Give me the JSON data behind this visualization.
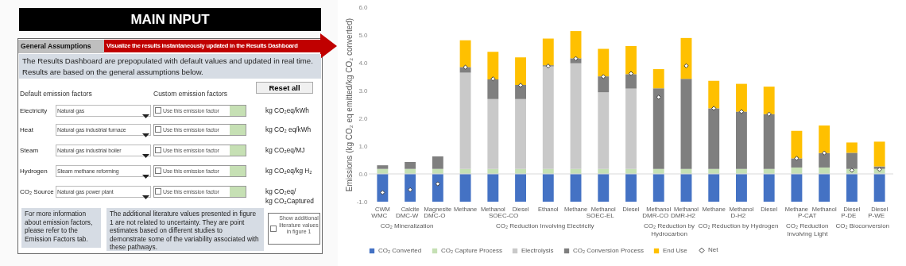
{
  "chart_data": [
    {
      "type": "other",
      "title": "MAIN INPUT",
      "subtitle": "General Assumptions",
      "annotations": [
        "Visualize the results instantaneously updated in the Results Dashboard",
        "The Results Dashboard are prepopulated with default values and updated in real time.",
        "Results are based on the general assumptions below.",
        "Reset all",
        "Default emission factors",
        "Custom emission factors",
        "Electricity",
        "Natural gas",
        "Use this emission factor",
        "kg CO₂eq/kWh",
        "Heat",
        "Natural gas industrial furnace",
        "Use this emission factor",
        "kg CO₂ eq/kWh",
        "Steam",
        "Natural gas industrial boiler",
        "Use this emission factor",
        "kg CO₂eq/MJ",
        "Hydrogen",
        "Steam methane reforming",
        "Use this emission factor",
        "kg CO₂eq/kg H₂",
        "CO₂ Source",
        "Natural gas power plant",
        "Use this emission factor",
        "kg CO₂eq/\nkg CO₂Captured",
        "For more information about  emission factors, please refer to the Emission Factors tab.",
        "The additional literature values presented in figure 1 are not related to uncertainty. They are point estimates based on different studies to demonstrate some of the variability associated with these pathways.",
        "Show additional literature values in figure 1"
      ]
    },
    {
      "type": "bar",
      "stacked": true,
      "ylabel": "Emissions (kg CO₂ eq emitted/kg CO₂ converted)",
      "legend": "bottom",
      "categories": [
        "CWM",
        "Calcite",
        "Magnesite",
        "Methane",
        "Methanol",
        "Diesel",
        "Ethanol",
        "Methane",
        "Methanol",
        "Diesel",
        "Methanol",
        "Methanol",
        "Methane",
        "Methanol",
        "Diesel",
        "Methane",
        "Methanol",
        "Diesel",
        "Diesel"
      ],
      "series": [
        {
          "name": "CO₂ Converted",
          "color": "#4472c4",
          "values": [
            -1,
            -1,
            -1,
            -1,
            -1,
            -1,
            -1,
            -1,
            -1,
            -1,
            -1,
            -1,
            -1,
            -1,
            -1,
            -1,
            -1,
            -1,
            -1
          ]
        },
        {
          "name": "CO₂ Capture Process",
          "color": "#c5e0b4",
          "values": [
            0.18,
            0.18,
            0.18,
            0.18,
            0.18,
            0.18,
            0.18,
            0.18,
            0.18,
            0.18,
            0.18,
            0.18,
            0.18,
            0.18,
            0.18,
            0.23,
            0.23,
            0.18,
            0.18
          ]
        },
        {
          "name": "Electrolysis",
          "color": "#c9c9c9",
          "values": [
            null,
            null,
            null,
            3.46,
            2.51,
            2.51,
            3.69,
            3.8,
            2.76,
            2.89,
            null,
            null,
            null,
            null,
            null,
            null,
            null,
            null,
            null
          ]
        },
        {
          "name": "CO₂ Conversion Process",
          "color": "#7f7f7f",
          "values": [
            0.13,
            0.25,
            0.45,
            0.2,
            0.71,
            0.51,
            0.04,
            0.18,
            0.57,
            0.52,
            2.9,
            3.24,
            2.18,
            2.06,
            1.97,
            0.33,
            0.52,
            0.58,
            0.09
          ]
        },
        {
          "name": "End Use",
          "color": "#ffc000",
          "values": [
            null,
            null,
            null,
            0.97,
            0.99,
            0.99,
            0.96,
            0.98,
            0.99,
            1.01,
            0.69,
            1.47,
            0.99,
            1.0,
            0.99,
            0.99,
            0.99,
            0.37,
            0.89
          ]
        },
        {
          "name": "Net",
          "type": "scatter",
          "marker": "diamond",
          "color": "#ffffff",
          "values": [
            -0.67,
            -0.57,
            -0.36,
            3.84,
            3.42,
            3.19,
            3.88,
            4.15,
            3.5,
            3.61,
            2.76,
            3.89,
            2.36,
            2.24,
            2.15,
            0.56,
            0.75,
            0.13,
            0.16
          ]
        }
      ],
      "ylim": [
        -1,
        6
      ],
      "yticks": [
        {
          "value": -1,
          "label": "-1.0"
        },
        {
          "value": 0,
          "label": "0.0"
        },
        {
          "value": 1,
          "label": "1.0"
        },
        {
          "value": 2,
          "label": "2.0"
        },
        {
          "value": 3,
          "label": "3.0"
        },
        {
          "value": 4,
          "label": "4.0"
        },
        {
          "value": 5,
          "label": "5.0"
        },
        {
          "value": 6,
          "label": "6.0"
        }
      ],
      "ref_lines": [
        {
          "axis": "y",
          "value": 0,
          "color": "#d9d9d9"
        }
      ],
      "annotations": [
        "WMC",
        "DMC-W",
        "DMC-O",
        "SOEC-CO",
        "SOEC-EL",
        "DMR-CO",
        "DMR-H2",
        "D-H2",
        "P-CAT",
        "P-DE",
        "P-WE",
        "CO₂ Mineralization",
        "CO₂ Reduction Involving Electricity",
        "CO₂ Reduction by Hydrocarbon",
        "CO₂ Reduction by Hydrogen",
        "CO₂ Reduction Involving Light",
        "CO₂ Bioconversion"
      ]
    }
  ]
}
